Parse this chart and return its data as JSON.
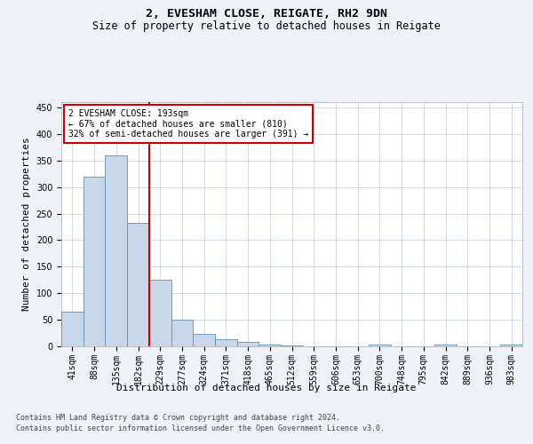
{
  "title": "2, EVESHAM CLOSE, REIGATE, RH2 9DN",
  "subtitle": "Size of property relative to detached houses in Reigate",
  "xlabel": "Distribution of detached houses by size in Reigate",
  "ylabel": "Number of detached properties",
  "categories": [
    "41sqm",
    "88sqm",
    "135sqm",
    "182sqm",
    "229sqm",
    "277sqm",
    "324sqm",
    "371sqm",
    "418sqm",
    "465sqm",
    "512sqm",
    "559sqm",
    "606sqm",
    "653sqm",
    "700sqm",
    "748sqm",
    "795sqm",
    "842sqm",
    "889sqm",
    "936sqm",
    "983sqm"
  ],
  "values": [
    65,
    320,
    360,
    233,
    125,
    50,
    23,
    13,
    8,
    4,
    1,
    0,
    0,
    0,
    4,
    0,
    0,
    4,
    0,
    0,
    3
  ],
  "bar_color": "#c8d8ea",
  "bar_edge_color": "#6090b0",
  "vline_color": "#cc0000",
  "annotation_text": "2 EVESHAM CLOSE: 193sqm\n← 67% of detached houses are smaller (810)\n32% of semi-detached houses are larger (391) →",
  "annotation_box_color": "#ffffff",
  "annotation_box_edge": "#cc0000",
  "ylim": [
    0,
    460
  ],
  "yticks": [
    0,
    50,
    100,
    150,
    200,
    250,
    300,
    350,
    400,
    450
  ],
  "footer1": "Contains HM Land Registry data © Crown copyright and database right 2024.",
  "footer2": "Contains public sector information licensed under the Open Government Licence v3.0.",
  "title_fontsize": 9.5,
  "subtitle_fontsize": 8.5,
  "tick_fontsize": 7,
  "label_fontsize": 8,
  "annotation_fontsize": 7,
  "background_color": "#eef2f8",
  "plot_bg_color": "#ffffff",
  "grid_color": "#c0cad8"
}
